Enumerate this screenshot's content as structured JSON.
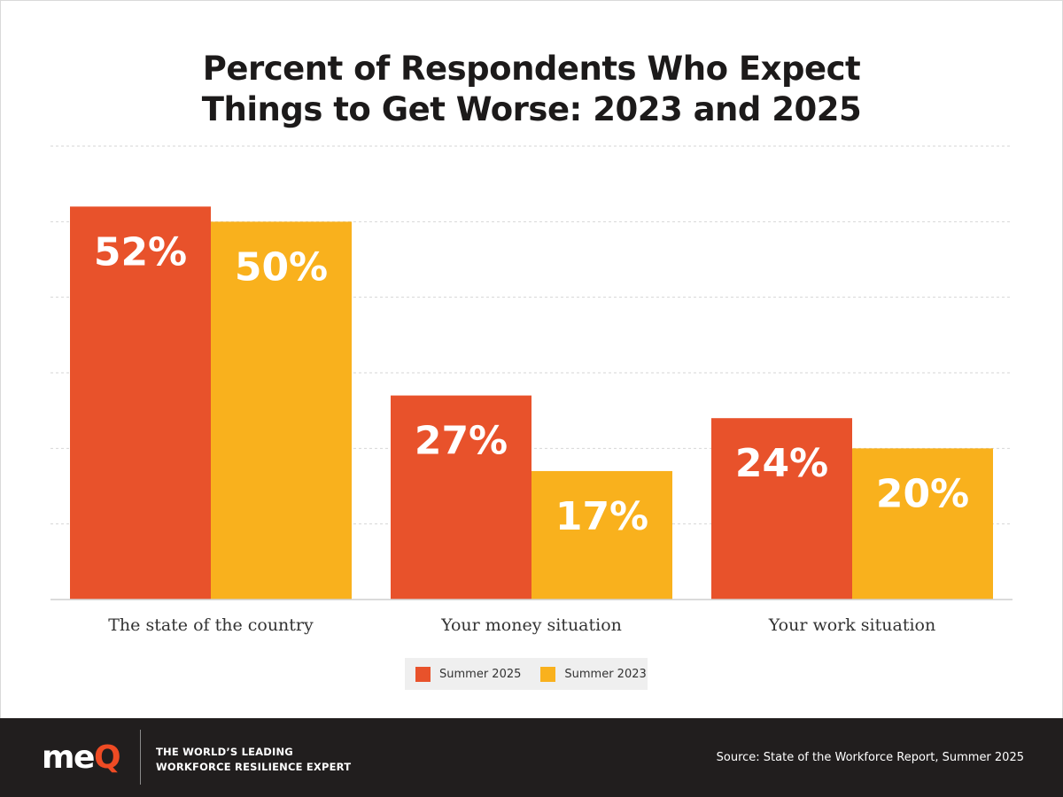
{
  "colors": {
    "summer_2025": "#e8522b",
    "summer_2023": "#f9b11d",
    "background": "#ffffff",
    "footer_bg": "#211e1e",
    "gridline": "#d6d6d6",
    "logo_accent": "#ef4b24"
  },
  "chart_data": {
    "type": "bar",
    "title": "Percent of Respondents Who Expect Things to Get Worse: 2023 and 2025",
    "categories": [
      "The state of the country",
      "Your money situation",
      "Your work situation"
    ],
    "series": [
      {
        "name": "Summer 2025",
        "values": [
          52,
          27,
          24
        ],
        "labels": [
          "52%",
          "27%",
          "24%"
        ]
      },
      {
        "name": "Summer 2023",
        "values": [
          50,
          17,
          20
        ],
        "labels": [
          "50%",
          "17%",
          "20%"
        ]
      }
    ],
    "ylim": [
      0,
      60
    ],
    "grid": true,
    "legend": "bottom-center"
  },
  "title_lines": [
    "Percent of Respondents Who Expect",
    "Things to Get Worse: 2023 and 2025"
  ],
  "legend": {
    "items": [
      "Summer 2025",
      "Summer 2023"
    ]
  },
  "footer": {
    "logo_text": "me",
    "logo_accent_text": "Q",
    "tagline_line1": "THE WORLD’S LEADING",
    "tagline_line2": "WORKFORCE RESILIENCE EXPERT",
    "source": "Source: State of the Workforce Report, Summer 2025"
  }
}
